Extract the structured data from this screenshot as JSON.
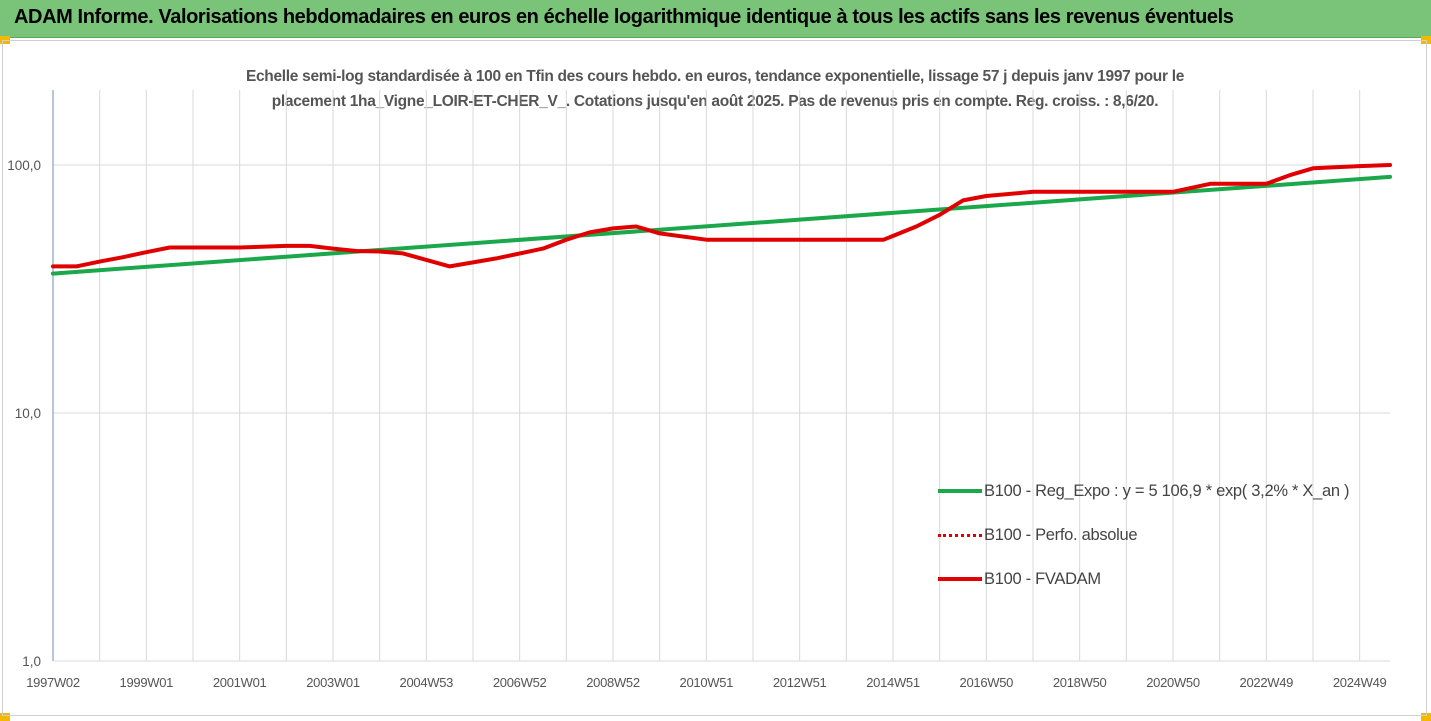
{
  "header": {
    "title": "ADAM Informe. Valorisations hebdomadaires en euros en échelle logarithmique identique à tous les actifs sans les revenus éventuels"
  },
  "chart_data": {
    "type": "line",
    "subtitle_lines": [
      "Echelle semi-log standardisée à 100 en Tfin des cours hebdo. en euros, tendance exponentielle, lissage 57 j depuis janv 1997 pour le",
      "placement 1ha_Vigne_LOIR-ET-CHER_V_. Cotations jusqu'en août 2025. Pas de revenus pris en compte. Reg. croiss. : 8,6/20."
    ],
    "y_scale": "log",
    "ylim": [
      1,
      200
    ],
    "y_ticks": [
      {
        "value": 1,
        "label": "1,0"
      },
      {
        "value": 10,
        "label": "10,0"
      },
      {
        "value": 100,
        "label": "100,0"
      }
    ],
    "xlim": [
      1997.0,
      2025.65
    ],
    "x_ticks": [
      {
        "value": 1997.0,
        "label": "1997W02"
      },
      {
        "value": 1999.0,
        "label": "1999W01"
      },
      {
        "value": 2001.0,
        "label": "2001W01"
      },
      {
        "value": 2003.0,
        "label": "2003W01"
      },
      {
        "value": 2005.0,
        "label": "2004W53"
      },
      {
        "value": 2007.0,
        "label": "2006W52"
      },
      {
        "value": 2009.0,
        "label": "2008W52"
      },
      {
        "value": 2011.0,
        "label": "2010W51"
      },
      {
        "value": 2013.0,
        "label": "2012W51"
      },
      {
        "value": 2015.0,
        "label": "2014W51"
      },
      {
        "value": 2017.0,
        "label": "2016W50"
      },
      {
        "value": 2019.0,
        "label": "2018W50"
      },
      {
        "value": 2021.0,
        "label": "2020W50"
      },
      {
        "value": 2023.0,
        "label": "2022W49"
      },
      {
        "value": 2025.0,
        "label": "2024W49"
      }
    ],
    "grid": true,
    "legend_position": "bottom-right",
    "series": [
      {
        "name": "B100 - Reg_Expo : y = 5 106,9 * exp( 3,2% *  X_an )",
        "color": "#1aa84a",
        "style": "solid",
        "x": [
          1997.0,
          2025.65
        ],
        "y": [
          36.5,
          89.5
        ]
      },
      {
        "name": "B100 - Perfo. absolue",
        "color": "#e00000",
        "style": "dotted",
        "x": [],
        "y": []
      },
      {
        "name": "B100 - FVADAM",
        "color": "#e00000",
        "style": "solid",
        "x": [
          1997.0,
          1997.5,
          1998.0,
          1998.5,
          1999.0,
          1999.5,
          2000.0,
          2001.0,
          2002.0,
          2002.5,
          2003.0,
          2003.5,
          2004.0,
          2004.5,
          2005.5,
          2006.5,
          2007.5,
          2008.0,
          2008.5,
          2009.0,
          2009.5,
          2010.0,
          2011.0,
          2012.0,
          2013.0,
          2014.0,
          2014.8,
          2015.5,
          2016.0,
          2016.5,
          2017.0,
          2018.0,
          2019.0,
          2020.0,
          2021.0,
          2021.8,
          2022.0,
          2023.0,
          2023.5,
          2024.0,
          2025.0,
          2025.65
        ],
        "y": [
          39.0,
          39.0,
          40.8,
          42.5,
          44.5,
          46.5,
          46.5,
          46.5,
          47.2,
          47.2,
          46.0,
          45.0,
          44.8,
          44.0,
          39.0,
          42.0,
          46.0,
          50.0,
          53.5,
          55.5,
          56.5,
          53.0,
          50.0,
          50.0,
          50.0,
          50.0,
          50.0,
          56.5,
          63.0,
          72.0,
          75.0,
          78.0,
          78.0,
          78.0,
          78.0,
          84.0,
          84.0,
          84.0,
          91.0,
          97.0,
          99.0,
          100.0
        ]
      }
    ]
  }
}
